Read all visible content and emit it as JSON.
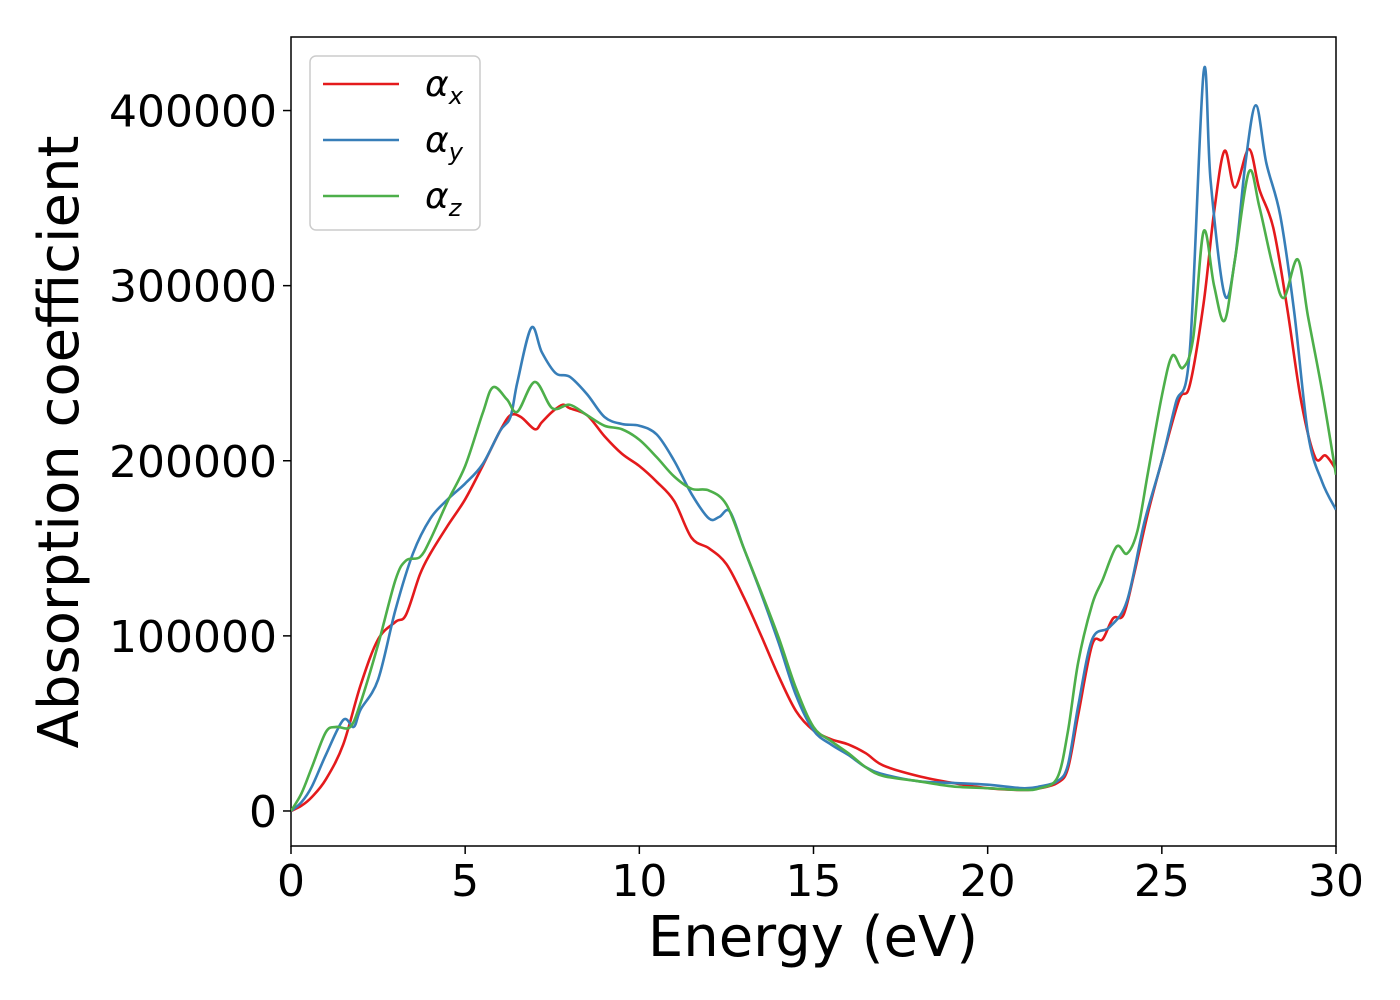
{
  "chart_data": {
    "type": "line",
    "xlabel": "Energy (eV)",
    "ylabel": "Absorption coefficient",
    "xlim": [
      0,
      30
    ],
    "ylim": [
      -20000,
      442000
    ],
    "xticks": [
      0,
      5,
      10,
      15,
      20,
      25,
      30
    ],
    "yticks": [
      0,
      100000,
      200000,
      300000,
      400000
    ],
    "grid": false,
    "legend": "top-left",
    "series": [
      {
        "name": "α_x",
        "base": "α",
        "sub": "x",
        "color": "#e41a1c",
        "x": [
          0,
          0.3,
          0.6,
          1.0,
          1.5,
          2.0,
          2.5,
          3.0,
          3.3,
          3.7,
          4.0,
          4.5,
          5.0,
          5.5,
          6.0,
          6.3,
          6.6,
          7.0,
          7.2,
          7.5,
          7.8,
          8.0,
          8.5,
          9.0,
          9.5,
          10.0,
          10.5,
          11.0,
          11.5,
          12.0,
          12.5,
          13.0,
          13.5,
          14.0,
          14.5,
          15.0,
          15.5,
          16.0,
          16.5,
          17.0,
          18.0,
          19.0,
          20.0,
          21.0,
          21.5,
          22.0,
          22.3,
          22.6,
          23.0,
          23.3,
          23.6,
          23.9,
          24.2,
          24.6,
          25.0,
          25.5,
          25.8,
          26.2,
          26.5,
          26.8,
          27.1,
          27.5,
          27.8,
          28.2,
          28.6,
          29.0,
          29.4,
          29.7,
          30.0
        ],
        "values": [
          0,
          3000,
          8000,
          18000,
          38000,
          72000,
          98000,
          108000,
          112000,
          135000,
          147000,
          163000,
          178000,
          197000,
          217000,
          226000,
          225000,
          218000,
          222000,
          228000,
          232000,
          230000,
          226000,
          214000,
          204000,
          197000,
          188000,
          177000,
          156000,
          150000,
          141000,
          122000,
          100000,
          77000,
          57000,
          46000,
          41000,
          38000,
          33000,
          26000,
          20000,
          16000,
          13000,
          12000,
          13000,
          16000,
          24000,
          55000,
          95000,
          98000,
          110000,
          112000,
          135000,
          170000,
          200000,
          235000,
          243000,
          290000,
          342000,
          377000,
          356000,
          378000,
          355000,
          333000,
          287000,
          234000,
          202000,
          203000,
          195000
        ]
      },
      {
        "name": "α_y",
        "base": "α",
        "sub": "y",
        "color": "#377eb8",
        "x": [
          0,
          0.3,
          0.6,
          1.0,
          1.5,
          1.8,
          2.0,
          2.5,
          3.0,
          3.5,
          4.0,
          4.5,
          5.0,
          5.5,
          6.0,
          6.3,
          6.5,
          6.9,
          7.2,
          7.6,
          8.0,
          8.5,
          9.0,
          9.5,
          10.0,
          10.5,
          11.0,
          11.5,
          12.0,
          12.3,
          12.6,
          13.0,
          13.5,
          14.0,
          14.5,
          15.0,
          15.5,
          16.0,
          16.5,
          17.0,
          18.0,
          19.0,
          20.0,
          21.0,
          21.5,
          22.0,
          22.3,
          22.6,
          23.0,
          23.5,
          24.0,
          24.5,
          25.0,
          25.4,
          25.8,
          26.2,
          26.4,
          26.8,
          27.1,
          27.4,
          27.7,
          28.0,
          28.4,
          28.8,
          29.2,
          29.6,
          30.0
        ],
        "values": [
          0,
          5000,
          14000,
          32000,
          52000,
          48000,
          58000,
          75000,
          115000,
          147000,
          167000,
          178000,
          187000,
          198000,
          217000,
          225000,
          245000,
          276000,
          262000,
          250000,
          248000,
          238000,
          225000,
          221000,
          220000,
          215000,
          200000,
          181000,
          167000,
          168000,
          171000,
          150000,
          124000,
          96000,
          66000,
          46000,
          38000,
          32000,
          25000,
          21000,
          17000,
          16000,
          15000,
          13000,
          14000,
          17000,
          26000,
          60000,
          98000,
          105000,
          120000,
          165000,
          200000,
          233000,
          262000,
          422000,
          360000,
          295000,
          315000,
          370000,
          403000,
          370000,
          340000,
          285000,
          215000,
          188000,
          172000
        ]
      },
      {
        "name": "α_z",
        "base": "α",
        "sub": "z",
        "color": "#4daf4a",
        "x": [
          0,
          0.3,
          0.6,
          1.0,
          1.3,
          1.7,
          2.0,
          2.5,
          3.0,
          3.3,
          3.7,
          4.0,
          4.5,
          5.0,
          5.5,
          5.8,
          6.2,
          6.5,
          7.0,
          7.5,
          8.0,
          8.5,
          9.0,
          9.5,
          10.0,
          10.5,
          11.0,
          11.5,
          12.0,
          12.5,
          13.0,
          13.5,
          14.0,
          14.5,
          15.0,
          15.5,
          16.0,
          16.5,
          17.0,
          18.0,
          19.0,
          20.0,
          21.0,
          21.5,
          22.0,
          22.3,
          22.6,
          23.0,
          23.3,
          23.7,
          24.0,
          24.3,
          24.6,
          25.0,
          25.3,
          25.6,
          25.9,
          26.2,
          26.5,
          26.8,
          27.1,
          27.5,
          27.8,
          28.2,
          28.5,
          28.9,
          29.2,
          29.6,
          30.0
        ],
        "values": [
          0,
          10000,
          25000,
          45000,
          48000,
          48000,
          62000,
          95000,
          132000,
          143000,
          145000,
          155000,
          177000,
          197000,
          227000,
          242000,
          235000,
          228000,
          245000,
          230000,
          232000,
          226000,
          220000,
          218000,
          212000,
          202000,
          191000,
          184000,
          183000,
          175000,
          150000,
          125000,
          99000,
          70000,
          48000,
          40000,
          33000,
          25000,
          20000,
          17000,
          14000,
          13000,
          12000,
          13000,
          19000,
          45000,
          85000,
          118000,
          132000,
          151000,
          147000,
          160000,
          193000,
          237000,
          260000,
          253000,
          270000,
          331000,
          300000,
          280000,
          315000,
          365000,
          345000,
          310000,
          293000,
          315000,
          282000,
          240000,
          192000
        ]
      }
    ]
  }
}
